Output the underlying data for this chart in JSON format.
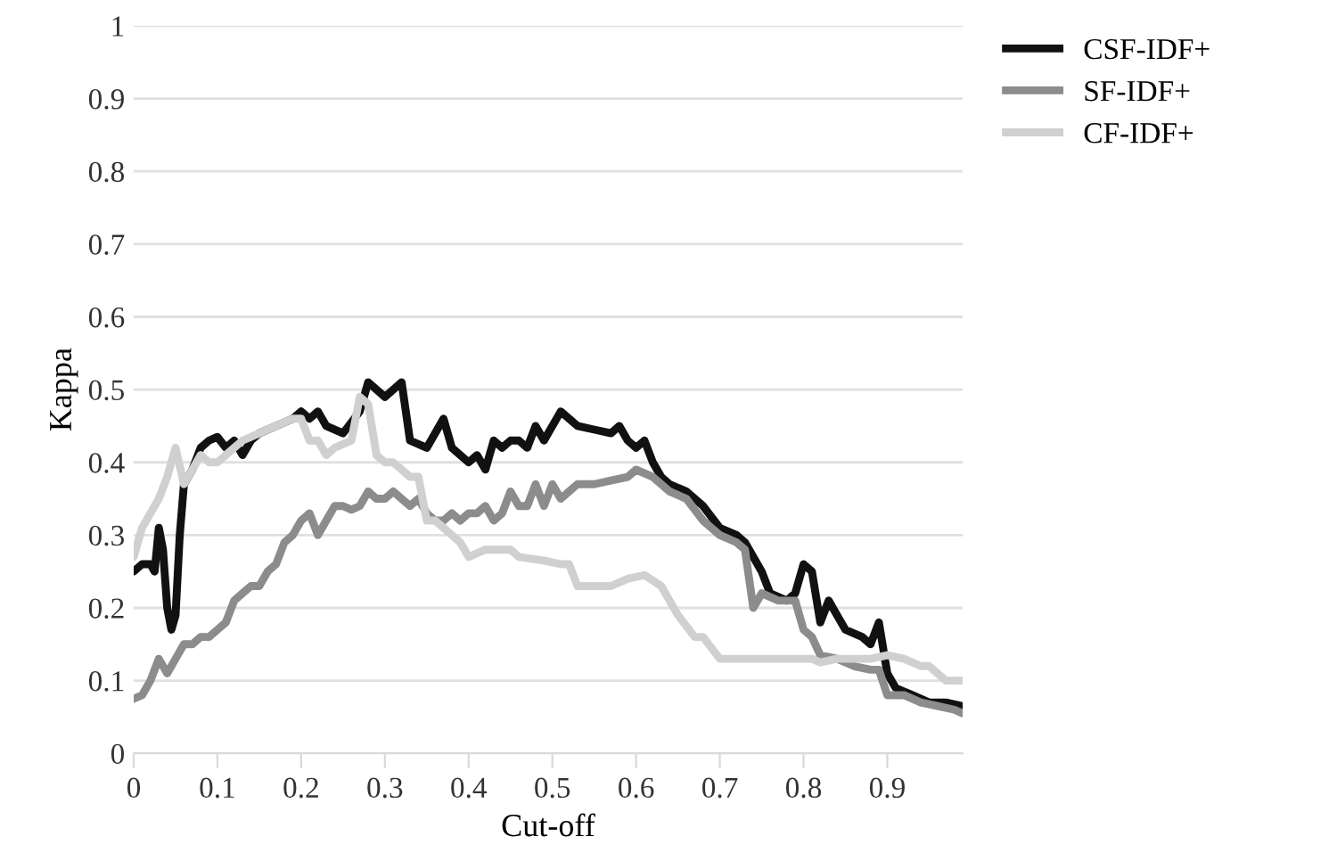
{
  "chart_data": {
    "type": "line",
    "xlabel": "Cut-off",
    "ylabel": "Kappa",
    "xlim": [
      0,
      0.99
    ],
    "ylim": [
      0,
      1
    ],
    "xticks": [
      0,
      0.1,
      0.2,
      0.3,
      0.4,
      0.5,
      0.6,
      0.7,
      0.8,
      0.9
    ],
    "yticks": [
      0,
      0.1,
      0.2,
      0.3,
      0.4,
      0.5,
      0.6,
      0.7,
      0.8,
      0.9,
      1
    ],
    "grid": "y",
    "legend": "top right",
    "marker": "none",
    "line_style": "solid",
    "series": [
      {
        "name": "CSF-IDF+",
        "color": "#111111",
        "x": [
          0,
          0.01,
          0.02,
          0.025,
          0.03,
          0.035,
          0.04,
          0.045,
          0.05,
          0.055,
          0.06,
          0.07,
          0.08,
          0.09,
          0.1,
          0.11,
          0.12,
          0.13,
          0.14,
          0.15,
          0.19,
          0.2,
          0.21,
          0.22,
          0.23,
          0.25,
          0.27,
          0.28,
          0.29,
          0.3,
          0.31,
          0.32,
          0.33,
          0.35,
          0.37,
          0.38,
          0.4,
          0.41,
          0.42,
          0.43,
          0.44,
          0.45,
          0.46,
          0.47,
          0.48,
          0.49,
          0.51,
          0.53,
          0.55,
          0.57,
          0.58,
          0.59,
          0.6,
          0.61,
          0.62,
          0.63,
          0.64,
          0.66,
          0.68,
          0.7,
          0.72,
          0.73,
          0.75,
          0.76,
          0.78,
          0.79,
          0.8,
          0.81,
          0.82,
          0.83,
          0.84,
          0.85,
          0.87,
          0.88,
          0.89,
          0.9,
          0.91,
          0.93,
          0.95,
          0.97,
          0.99
        ],
        "values": [
          0.25,
          0.26,
          0.26,
          0.25,
          0.31,
          0.28,
          0.2,
          0.17,
          0.19,
          0.3,
          0.37,
          0.39,
          0.42,
          0.43,
          0.435,
          0.42,
          0.43,
          0.41,
          0.43,
          0.44,
          0.46,
          0.47,
          0.46,
          0.47,
          0.45,
          0.44,
          0.47,
          0.51,
          0.5,
          0.49,
          0.5,
          0.51,
          0.43,
          0.42,
          0.46,
          0.42,
          0.4,
          0.41,
          0.39,
          0.43,
          0.42,
          0.43,
          0.43,
          0.42,
          0.45,
          0.43,
          0.47,
          0.45,
          0.445,
          0.44,
          0.45,
          0.43,
          0.42,
          0.43,
          0.4,
          0.38,
          0.37,
          0.36,
          0.34,
          0.31,
          0.3,
          0.29,
          0.25,
          0.22,
          0.21,
          0.22,
          0.26,
          0.25,
          0.18,
          0.21,
          0.19,
          0.17,
          0.16,
          0.15,
          0.18,
          0.11,
          0.09,
          0.08,
          0.07,
          0.07,
          0.065
        ]
      },
      {
        "name": "SF-IDF+",
        "color": "#8c8c8c",
        "x": [
          0,
          0.01,
          0.02,
          0.03,
          0.04,
          0.05,
          0.06,
          0.07,
          0.08,
          0.09,
          0.1,
          0.11,
          0.12,
          0.13,
          0.14,
          0.15,
          0.16,
          0.17,
          0.18,
          0.19,
          0.2,
          0.21,
          0.22,
          0.23,
          0.24,
          0.25,
          0.26,
          0.27,
          0.28,
          0.29,
          0.3,
          0.31,
          0.32,
          0.33,
          0.34,
          0.35,
          0.36,
          0.37,
          0.38,
          0.39,
          0.4,
          0.41,
          0.42,
          0.43,
          0.44,
          0.45,
          0.46,
          0.47,
          0.48,
          0.49,
          0.5,
          0.51,
          0.52,
          0.53,
          0.55,
          0.57,
          0.59,
          0.6,
          0.62,
          0.64,
          0.66,
          0.68,
          0.7,
          0.72,
          0.73,
          0.74,
          0.75,
          0.77,
          0.79,
          0.8,
          0.81,
          0.82,
          0.84,
          0.86,
          0.88,
          0.89,
          0.9,
          0.92,
          0.94,
          0.96,
          0.98,
          0.99
        ],
        "values": [
          0.075,
          0.08,
          0.1,
          0.13,
          0.11,
          0.13,
          0.15,
          0.15,
          0.16,
          0.16,
          0.17,
          0.18,
          0.21,
          0.22,
          0.23,
          0.23,
          0.25,
          0.26,
          0.29,
          0.3,
          0.32,
          0.33,
          0.3,
          0.32,
          0.34,
          0.34,
          0.335,
          0.34,
          0.36,
          0.35,
          0.35,
          0.36,
          0.35,
          0.34,
          0.35,
          0.33,
          0.32,
          0.32,
          0.33,
          0.32,
          0.33,
          0.33,
          0.34,
          0.32,
          0.33,
          0.36,
          0.34,
          0.34,
          0.37,
          0.34,
          0.37,
          0.35,
          0.36,
          0.37,
          0.37,
          0.375,
          0.38,
          0.39,
          0.38,
          0.36,
          0.35,
          0.32,
          0.3,
          0.29,
          0.28,
          0.2,
          0.22,
          0.21,
          0.21,
          0.17,
          0.16,
          0.135,
          0.13,
          0.12,
          0.115,
          0.115,
          0.08,
          0.08,
          0.07,
          0.065,
          0.06,
          0.055
        ]
      },
      {
        "name": "CF-IDF+",
        "color": "#d0d0d0",
        "x": [
          0,
          0.01,
          0.02,
          0.03,
          0.04,
          0.05,
          0.06,
          0.07,
          0.08,
          0.09,
          0.1,
          0.11,
          0.13,
          0.15,
          0.17,
          0.19,
          0.2,
          0.21,
          0.22,
          0.23,
          0.24,
          0.26,
          0.27,
          0.28,
          0.29,
          0.3,
          0.31,
          0.32,
          0.33,
          0.34,
          0.35,
          0.36,
          0.37,
          0.38,
          0.39,
          0.4,
          0.42,
          0.45,
          0.46,
          0.49,
          0.51,
          0.52,
          0.53,
          0.57,
          0.59,
          0.61,
          0.63,
          0.65,
          0.67,
          0.68,
          0.7,
          0.73,
          0.78,
          0.81,
          0.82,
          0.84,
          0.86,
          0.88,
          0.9,
          0.92,
          0.94,
          0.95,
          0.97,
          0.99
        ],
        "values": [
          0.27,
          0.31,
          0.33,
          0.35,
          0.38,
          0.42,
          0.37,
          0.39,
          0.41,
          0.4,
          0.4,
          0.41,
          0.43,
          0.44,
          0.45,
          0.46,
          0.46,
          0.43,
          0.43,
          0.41,
          0.42,
          0.43,
          0.49,
          0.48,
          0.41,
          0.4,
          0.4,
          0.39,
          0.38,
          0.38,
          0.32,
          0.32,
          0.31,
          0.3,
          0.29,
          0.27,
          0.28,
          0.28,
          0.27,
          0.265,
          0.26,
          0.26,
          0.23,
          0.23,
          0.24,
          0.245,
          0.23,
          0.19,
          0.16,
          0.16,
          0.13,
          0.13,
          0.13,
          0.13,
          0.125,
          0.13,
          0.13,
          0.13,
          0.135,
          0.13,
          0.12,
          0.12,
          0.1,
          0.1
        ]
      }
    ]
  }
}
